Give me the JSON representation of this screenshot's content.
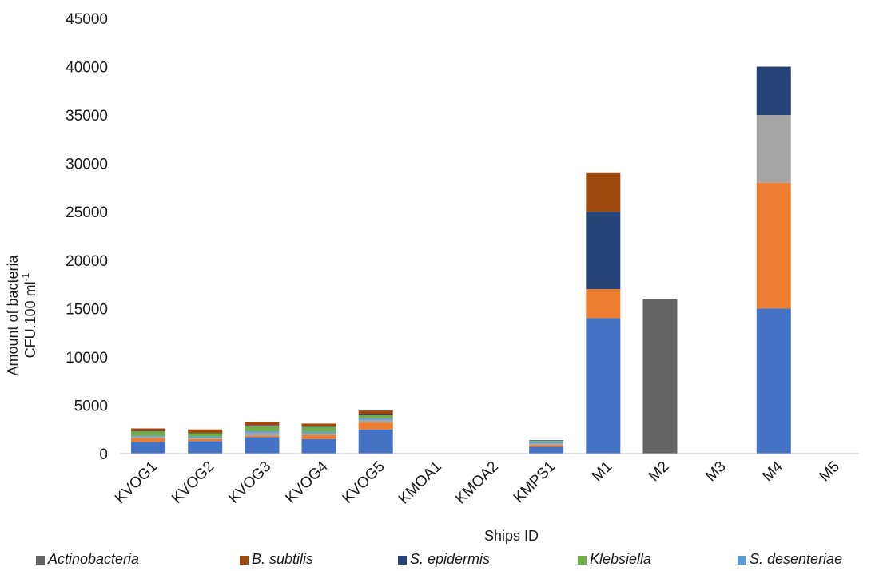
{
  "chart_data": {
    "type": "bar",
    "stacked": true,
    "categories": [
      "KVOG1",
      "KVOG2",
      "KVOG3",
      "KVOG4",
      "KVOG5",
      "KMOA1",
      "KMOA2",
      "KMPS1",
      "M1",
      "M2",
      "M3",
      "M4",
      "M5"
    ],
    "xlabel": "Ships ID",
    "ylabel_line1": "Amount of bacteria",
    "ylabel_line2_main": "CFU.100 ml",
    "ylabel_line2_sup": "-1",
    "ylim": [
      0,
      45000
    ],
    "yticks": [
      0,
      5000,
      10000,
      15000,
      20000,
      25000,
      30000,
      35000,
      40000,
      45000
    ],
    "grid": false,
    "legend_position": "bottom",
    "series": [
      {
        "name": "",
        "color": "#4472C4",
        "values": [
          1200,
          1300,
          1700,
          1500,
          2500,
          0,
          0,
          700,
          14000,
          0,
          0,
          15000,
          0
        ]
      },
      {
        "name": "",
        "color": "#ED7D31",
        "values": [
          400,
          200,
          150,
          400,
          700,
          0,
          0,
          200,
          3000,
          0,
          0,
          13000,
          0
        ]
      },
      {
        "name": "",
        "color": "#A5A5A5",
        "values": [
          150,
          150,
          300,
          200,
          300,
          0,
          0,
          150,
          0,
          0,
          0,
          7000,
          0
        ]
      },
      {
        "name": "S. desenteriae",
        "color": "#5B9BD5",
        "values": [
          100,
          100,
          150,
          150,
          150,
          0,
          0,
          200,
          0,
          0,
          0,
          0,
          0
        ]
      },
      {
        "name": "Klebsiella",
        "color": "#70AD47",
        "values": [
          450,
          350,
          500,
          500,
          300,
          0,
          0,
          100,
          0,
          0,
          0,
          0,
          0
        ]
      },
      {
        "name": "S. epidermis",
        "color": "#264478",
        "values": [
          50,
          50,
          100,
          50,
          100,
          0,
          0,
          50,
          8000,
          0,
          0,
          5000,
          0
        ]
      },
      {
        "name": "B. subtilis",
        "color": "#9E480E",
        "values": [
          250,
          350,
          400,
          300,
          400,
          0,
          0,
          0,
          4000,
          0,
          0,
          0,
          0
        ]
      },
      {
        "name": "Actinobacteria",
        "color": "#636363",
        "values": [
          0,
          0,
          0,
          0,
          0,
          0,
          0,
          0,
          0,
          16000,
          0,
          0,
          0
        ]
      }
    ],
    "legend_order": [
      "Actinobacteria",
      "B. subtilis",
      "S. epidermis",
      "Klebsiella",
      "S. desenteriae"
    ]
  }
}
